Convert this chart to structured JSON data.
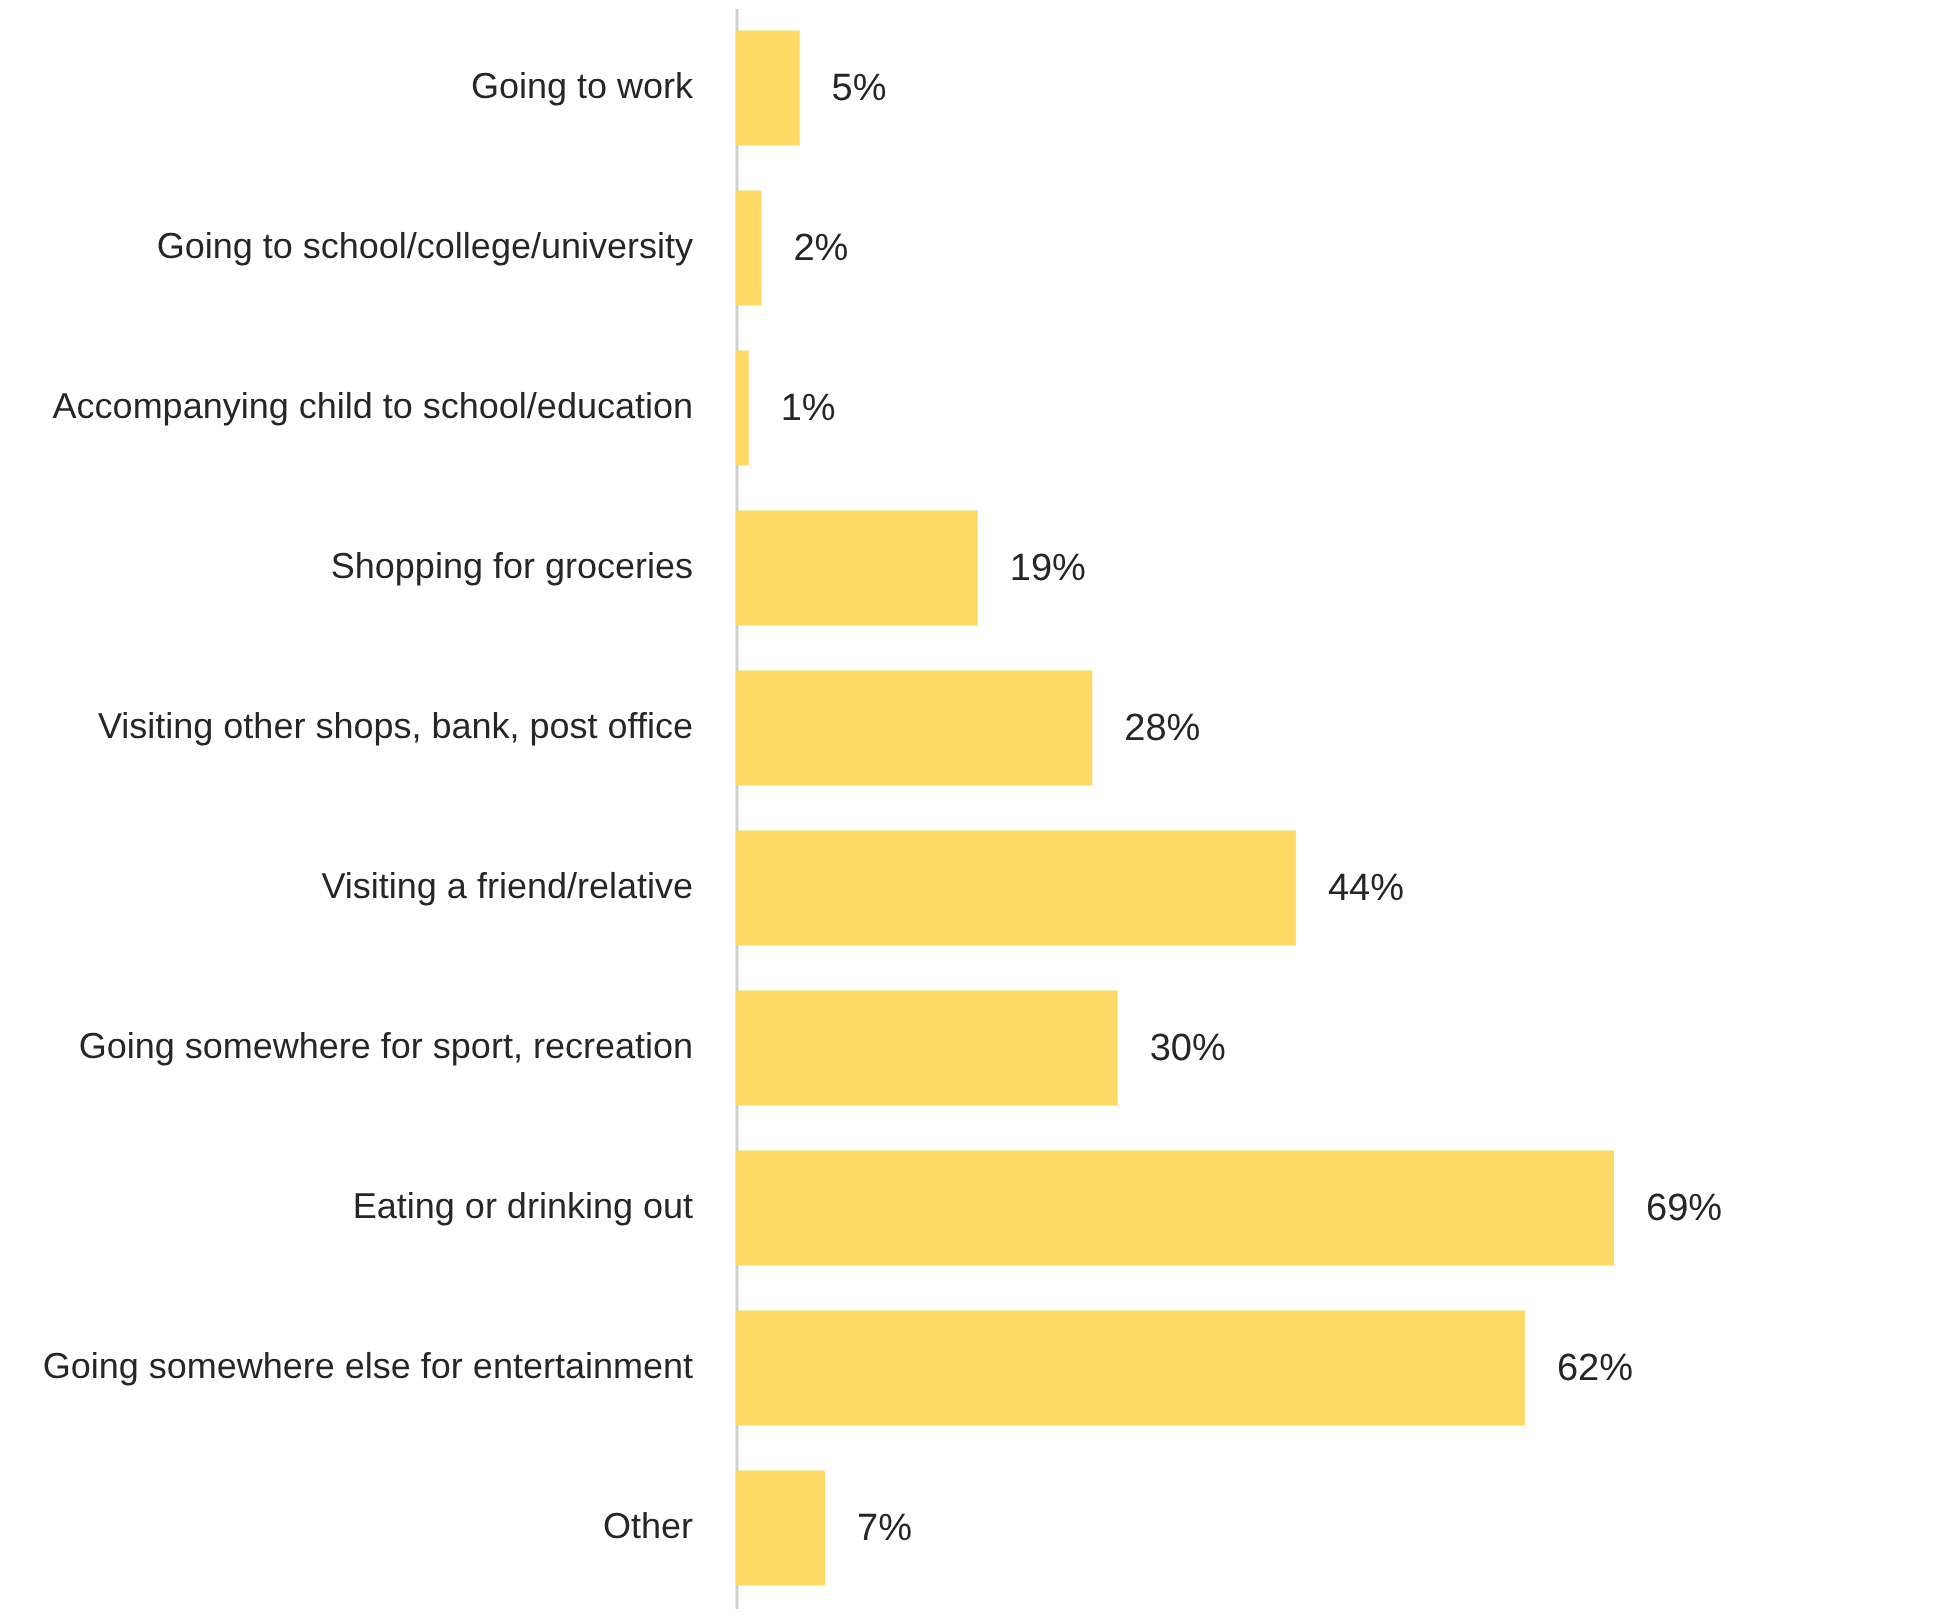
{
  "chart_data": {
    "type": "bar",
    "orientation": "horizontal",
    "categories": [
      "Going to work",
      "Going to school/college/university",
      "Accompanying child to school/education",
      "Shopping for groceries",
      "Visiting other shops, bank, post office",
      "Visiting a friend/relative",
      "Going somewhere for sport, recreation",
      "Eating or drinking out",
      "Going somewhere else for entertainment",
      "Other"
    ],
    "values": [
      5,
      2,
      1,
      19,
      28,
      44,
      30,
      69,
      62,
      7
    ],
    "value_labels": [
      "5%",
      "2%",
      "1%",
      "19%",
      "28%",
      "44%",
      "30%",
      "69%",
      "62%",
      "7%"
    ],
    "color": "#ffd966"
  }
}
